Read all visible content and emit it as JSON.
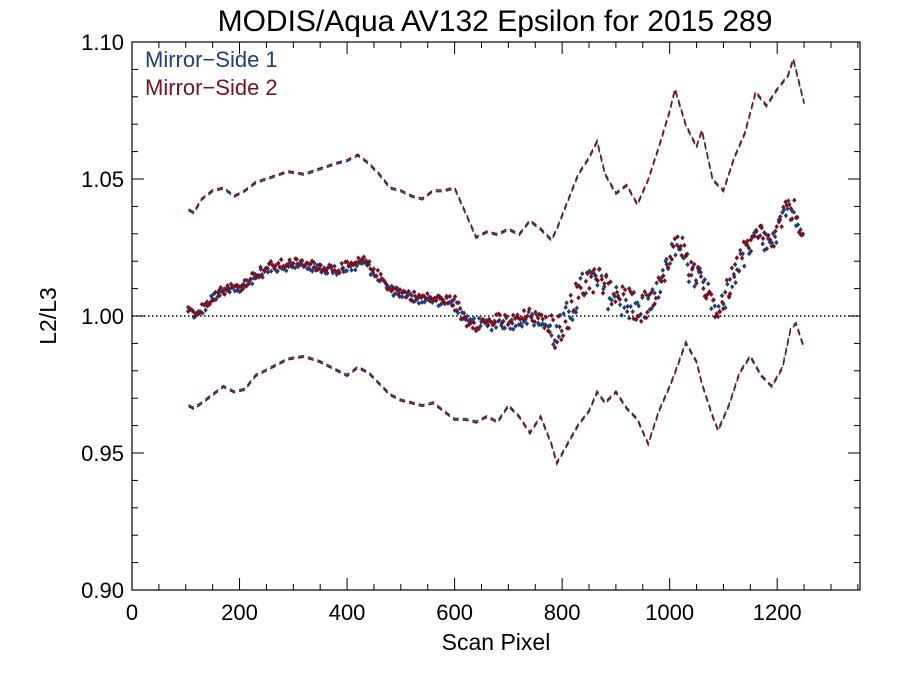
{
  "chart_data": {
    "type": "scatter",
    "title": "MODIS/Aqua AV132 Epsilon for 2015 289",
    "xlabel": "Scan Pixel",
    "ylabel": "L2/L3",
    "xlim": [
      0,
      1354
    ],
    "ylim": [
      0.9,
      1.1
    ],
    "x_ticks": [
      0,
      200,
      400,
      600,
      800,
      1000,
      1200
    ],
    "x_tick_labels": [
      "0",
      "200",
      "400",
      "600",
      "800",
      "1000",
      "1200"
    ],
    "y_ticks": [
      0.9,
      0.95,
      1.0,
      1.05,
      1.1
    ],
    "y_tick_labels": [
      "0.90",
      "0.95",
      "1.00",
      "1.05",
      "1.10"
    ],
    "reference_line": 1.0,
    "legend_position": "top-left",
    "colors": {
      "ms1": "#1f3f7a",
      "ms2": "#7a1020",
      "frame": "#000000"
    },
    "series": [
      {
        "name": "Mirror−Side 1",
        "color": "#1f3f7a"
      },
      {
        "name": "Mirror−Side 2",
        "color": "#7a1020"
      }
    ],
    "mean_profile": {
      "x": [
        105,
        120,
        150,
        180,
        200,
        230,
        260,
        300,
        340,
        380,
        410,
        430,
        450,
        480,
        520,
        560,
        600,
        620,
        650,
        680,
        710,
        740,
        770,
        790,
        810,
        830,
        850,
        870,
        890,
        920,
        950,
        980,
        1000,
        1020,
        1040,
        1060,
        1080,
        1090,
        1110,
        1130,
        1150,
        1170,
        1190,
        1210,
        1225,
        1240,
        1250
      ],
      "y": [
        1.003,
        1.0,
        1.007,
        1.01,
        1.01,
        1.015,
        1.018,
        1.019,
        1.018,
        1.017,
        1.018,
        1.02,
        1.016,
        1.01,
        1.007,
        1.006,
        1.005,
        0.998,
        0.997,
        0.998,
        0.998,
        1.0,
        0.997,
        0.993,
        1.0,
        1.008,
        1.014,
        1.012,
        1.008,
        1.005,
        1.003,
        1.01,
        1.022,
        1.027,
        1.015,
        1.012,
        1.005,
        1.0,
        1.01,
        1.02,
        1.025,
        1.03,
        1.025,
        1.035,
        1.04,
        1.035,
        1.03
      ]
    },
    "upper_envelope": {
      "x": [
        105,
        115,
        130,
        150,
        170,
        190,
        210,
        230,
        260,
        290,
        320,
        350,
        380,
        400,
        420,
        440,
        460,
        480,
        500,
        520,
        540,
        560,
        580,
        600,
        620,
        640,
        660,
        680,
        700,
        720,
        740,
        760,
        780,
        790,
        810,
        830,
        850,
        865,
        880,
        900,
        920,
        940,
        960,
        980,
        1000,
        1010,
        1030,
        1050,
        1060,
        1080,
        1100,
        1120,
        1140,
        1160,
        1180,
        1200,
        1220,
        1230,
        1240,
        1250
      ],
      "y": [
        1.039,
        1.038,
        1.043,
        1.046,
        1.047,
        1.044,
        1.046,
        1.049,
        1.051,
        1.053,
        1.052,
        1.054,
        1.056,
        1.057,
        1.059,
        1.056,
        1.052,
        1.047,
        1.046,
        1.044,
        1.043,
        1.046,
        1.046,
        1.047,
        1.038,
        1.029,
        1.031,
        1.03,
        1.032,
        1.03,
        1.035,
        1.032,
        1.028,
        1.032,
        1.042,
        1.052,
        1.058,
        1.064,
        1.052,
        1.045,
        1.048,
        1.041,
        1.05,
        1.062,
        1.075,
        1.083,
        1.07,
        1.062,
        1.068,
        1.05,
        1.046,
        1.058,
        1.067,
        1.082,
        1.077,
        1.083,
        1.088,
        1.094,
        1.086,
        1.078
      ]
    },
    "lower_envelope": {
      "x": [
        105,
        115,
        130,
        150,
        170,
        190,
        210,
        230,
        260,
        290,
        320,
        350,
        380,
        400,
        420,
        440,
        460,
        480,
        500,
        520,
        540,
        560,
        580,
        600,
        620,
        640,
        660,
        680,
        700,
        720,
        740,
        760,
        780,
        790,
        810,
        830,
        850,
        865,
        880,
        900,
        920,
        940,
        960,
        980,
        1000,
        1010,
        1030,
        1050,
        1060,
        1080,
        1090,
        1110,
        1130,
        1150,
        1170,
        1190,
        1210,
        1225,
        1235,
        1250
      ],
      "y": [
        0.967,
        0.966,
        0.968,
        0.971,
        0.974,
        0.972,
        0.973,
        0.978,
        0.981,
        0.984,
        0.985,
        0.983,
        0.98,
        0.978,
        0.981,
        0.979,
        0.975,
        0.971,
        0.969,
        0.968,
        0.967,
        0.968,
        0.965,
        0.962,
        0.962,
        0.961,
        0.963,
        0.961,
        0.967,
        0.963,
        0.957,
        0.963,
        0.953,
        0.946,
        0.953,
        0.96,
        0.965,
        0.972,
        0.968,
        0.972,
        0.966,
        0.962,
        0.953,
        0.965,
        0.974,
        0.979,
        0.99,
        0.983,
        0.975,
        0.963,
        0.958,
        0.967,
        0.979,
        0.985,
        0.978,
        0.974,
        0.981,
        0.995,
        0.997,
        0.988
      ]
    }
  }
}
